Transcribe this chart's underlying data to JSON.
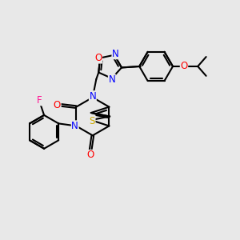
{
  "bg_color": "#e8e8e8",
  "bond_color": "#000000",
  "atom_colors": {
    "N": "#0000ff",
    "O": "#ff0000",
    "S": "#ccaa00",
    "F": "#ff1493",
    "C": "#000000"
  },
  "bond_width": 1.5,
  "font_size": 8.5
}
